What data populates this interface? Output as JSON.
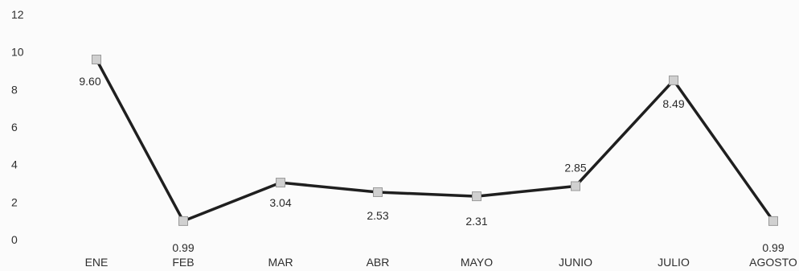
{
  "chart_data": {
    "type": "line",
    "categories": [
      "ENE",
      "FEB",
      "MAR",
      "ABR",
      "MAYO",
      "JUNIO",
      "JULIO",
      "AGOSTO"
    ],
    "values": [
      9.6,
      0.99,
      3.04,
      2.53,
      2.31,
      2.85,
      8.49,
      0.99
    ],
    "value_labels": [
      "9.60",
      "0.99",
      "3.04",
      "2.53",
      "2.31",
      "2.85",
      "8.49",
      "0.99"
    ],
    "y_ticks": [
      "0",
      "2",
      "4",
      "6",
      "8",
      "10",
      "12"
    ],
    "ylim": [
      0,
      12
    ],
    "grid": false,
    "legend": "none",
    "marker": "square",
    "colors": {
      "line": "#1f1f1f",
      "marker_fill": "#d0d0d0",
      "marker_stroke": "#9a9a9a"
    }
  }
}
